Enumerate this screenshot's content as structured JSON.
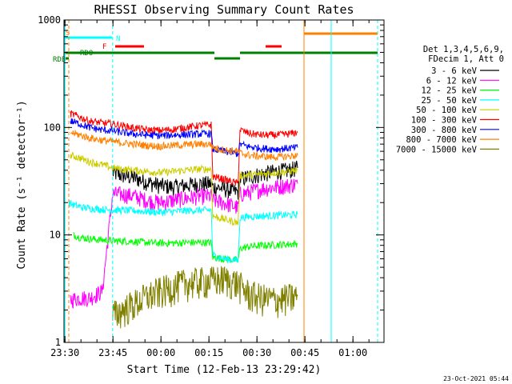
{
  "chart_data": {
    "type": "line",
    "title": "RHESSI Observing Summary Count Rates",
    "xlabel": "Start Time (12-Feb-13 23:29:42)",
    "ylabel": "Count Rate (s⁻¹ detector⁻¹)",
    "y_scale": "log",
    "ylim": [
      1,
      1000
    ],
    "xlim_minutes": [
      0,
      100
    ],
    "x_ticks": [
      {
        "label": "23:30",
        "value": 0.3
      },
      {
        "label": "23:45",
        "value": 15.3
      },
      {
        "label": "00:00",
        "value": 30.3
      },
      {
        "label": "00:15",
        "value": 45.3
      },
      {
        "label": "00:30",
        "value": 60.3
      },
      {
        "label": "00:45",
        "value": 75.3
      },
      {
        "label": "01:00",
        "value": 90.3
      }
    ],
    "y_ticks": [
      {
        "label": "1",
        "value": 1
      },
      {
        "label": "10",
        "value": 10
      },
      {
        "label": "100",
        "value": 100
      },
      {
        "label": "1000",
        "value": 1000
      }
    ],
    "grid": false,
    "legend_placement": "right",
    "legend_header": [
      "Det 1,3,4,5,6,9,",
      "FDecim 1, Att 0"
    ],
    "footer": "23-Oct-2021 05:44",
    "series": [
      {
        "name": "3 - 6 keV",
        "color": "#000000",
        "x": [
          15.2,
          18,
          22,
          26,
          30,
          34,
          38,
          42,
          46,
          46.5,
          50,
          54.4,
          55,
          58,
          62,
          66,
          70,
          73
        ],
        "y": [
          38,
          36,
          34,
          31,
          29,
          28,
          29,
          30,
          30,
          28,
          27,
          25,
          33,
          35,
          37,
          39,
          40,
          42
        ]
      },
      {
        "name": "6 - 12 keV",
        "color": "#ff00ff",
        "x": [
          2,
          5,
          8,
          12,
          15.2,
          18,
          22,
          26,
          30,
          34,
          38,
          42,
          46,
          46.5,
          50,
          54.4,
          55,
          58,
          62,
          66,
          70,
          73
        ],
        "y": [
          2.5,
          2.6,
          2.6,
          3,
          24,
          24,
          23,
          21,
          20,
          21,
          22,
          23,
          23,
          21,
          20,
          18,
          24,
          25,
          27,
          28,
          29,
          30
        ]
      },
      {
        "name": "12 - 25 keV",
        "color": "#00ff00",
        "x": [
          3,
          5,
          8,
          12,
          15.2,
          18,
          22,
          26,
          30,
          34,
          38,
          42,
          46,
          46.5,
          50,
          54.4,
          55,
          58,
          62,
          66,
          70,
          73
        ],
        "y": [
          10,
          9.5,
          9.2,
          9,
          8.8,
          8.8,
          8.7,
          8.5,
          8.4,
          8.4,
          8.5,
          8.5,
          8.5,
          6.2,
          6,
          5.8,
          7.5,
          7.8,
          8,
          8.1,
          8.2,
          8.3
        ]
      },
      {
        "name": "25 - 50 keV",
        "color": "#00ffff",
        "x": [
          1.5,
          3,
          6,
          10,
          15.2,
          18,
          22,
          26,
          30,
          34,
          38,
          42,
          46,
          46.5,
          50,
          54.4,
          55,
          58,
          62,
          66,
          70,
          73
        ],
        "y": [
          20,
          19,
          18,
          17.5,
          17,
          17,
          16.8,
          16.5,
          16.3,
          16.5,
          16.8,
          17,
          17,
          6.5,
          6,
          5.8,
          14.5,
          14.8,
          15,
          15.2,
          15.3,
          15.5
        ]
      },
      {
        "name": "50 - 100 keV",
        "color": "#cccc00",
        "x": [
          2,
          5,
          8,
          12,
          15.2,
          18,
          22,
          26,
          30,
          34,
          38,
          42,
          46,
          46.5,
          50,
          54.4,
          55,
          58,
          62,
          66,
          70,
          73
        ],
        "y": [
          55,
          52,
          48,
          45,
          42,
          41,
          40,
          39,
          38,
          39,
          40,
          41,
          41,
          15,
          14,
          13,
          36,
          36,
          37,
          38,
          39,
          40
        ]
      },
      {
        "name": "100 - 300 keV",
        "color": "#ff0000",
        "x": [
          2,
          5,
          8,
          12,
          15.2,
          18,
          22,
          26,
          30,
          34,
          38,
          42,
          46,
          46.5,
          50,
          54.4,
          55,
          58,
          62,
          66,
          70,
          73
        ],
        "y": [
          135,
          125,
          115,
          110,
          108,
          104,
          99,
          95,
          94,
          96,
          100,
          104,
          106,
          35,
          33,
          30,
          95,
          88,
          85,
          85,
          87,
          90
        ]
      },
      {
        "name": "300 - 800 keV",
        "color": "#0000ff",
        "x": [
          2,
          5,
          8,
          12,
          15.2,
          18,
          22,
          26,
          30,
          34,
          38,
          42,
          46,
          46.5,
          50,
          54.4,
          55,
          58,
          62,
          66,
          70,
          73
        ],
        "y": [
          115,
          108,
          100,
          95,
          93,
          90,
          87,
          85,
          84,
          85,
          86,
          87,
          88,
          63,
          60,
          57,
          70,
          66,
          64,
          63,
          64,
          65
        ]
      },
      {
        "name": "800 - 7000 keV",
        "color": "#ff8000",
        "x": [
          2,
          5,
          8,
          12,
          15.2,
          18,
          22,
          26,
          30,
          34,
          38,
          42,
          46,
          46.5,
          50,
          54.4,
          55,
          58,
          62,
          66,
          70,
          73
        ],
        "y": [
          90,
          85,
          80,
          76,
          74,
          72,
          70,
          68,
          67,
          68,
          69,
          70,
          70,
          65,
          62,
          60,
          58,
          55,
          54,
          53,
          54,
          55
        ]
      },
      {
        "name": "7000 - 15000 keV",
        "color": "#808000",
        "x": [
          15.2,
          18,
          22,
          26,
          30,
          34,
          38,
          42,
          46,
          50,
          54,
          58,
          62,
          66,
          70,
          73
        ],
        "y": [
          1.8,
          2.0,
          2.3,
          2.7,
          3.0,
          3.3,
          3.6,
          3.7,
          3.8,
          3.9,
          3.6,
          2.8,
          2.6,
          2.5,
          2.6,
          2.7
        ]
      }
    ],
    "flags": [
      {
        "label": "SAA",
        "color": "#ff8000",
        "marker": "S",
        "segments": [
          [
            75,
            98
          ]
        ]
      },
      {
        "label": "Night",
        "color": "#00ffff",
        "marker": "N",
        "segments": [
          [
            0,
            15
          ]
        ]
      },
      {
        "label": "Flare",
        "color": "#ff0000",
        "marker": "F",
        "segments": [
          [
            16,
            25
          ],
          [
            63,
            68
          ]
        ]
      },
      {
        "label": "RDO",
        "color": "#008000",
        "marker": "RDO",
        "segments": [
          [
            0,
            47
          ],
          [
            55,
            98
          ]
        ]
      },
      {
        "label": "RDB",
        "color": "#008000",
        "marker": "RDB",
        "segments": [
          [
            47,
            55
          ],
          [
            0.5,
            1.5
          ]
        ]
      }
    ],
    "vertical_lines": [
      {
        "x": 0.3,
        "color": "#00ffff",
        "style": "solid"
      },
      {
        "x": 1.5,
        "color": "#ff8000",
        "style": "dashed"
      },
      {
        "x": 15.2,
        "color": "#00ffff",
        "style": "dashed"
      },
      {
        "x": 75,
        "color": "#ff8000",
        "style": "solid"
      },
      {
        "x": 83.5,
        "color": "#00ffff",
        "style": "solid"
      },
      {
        "x": 98,
        "color": "#00ffff",
        "style": "dashed"
      }
    ]
  }
}
